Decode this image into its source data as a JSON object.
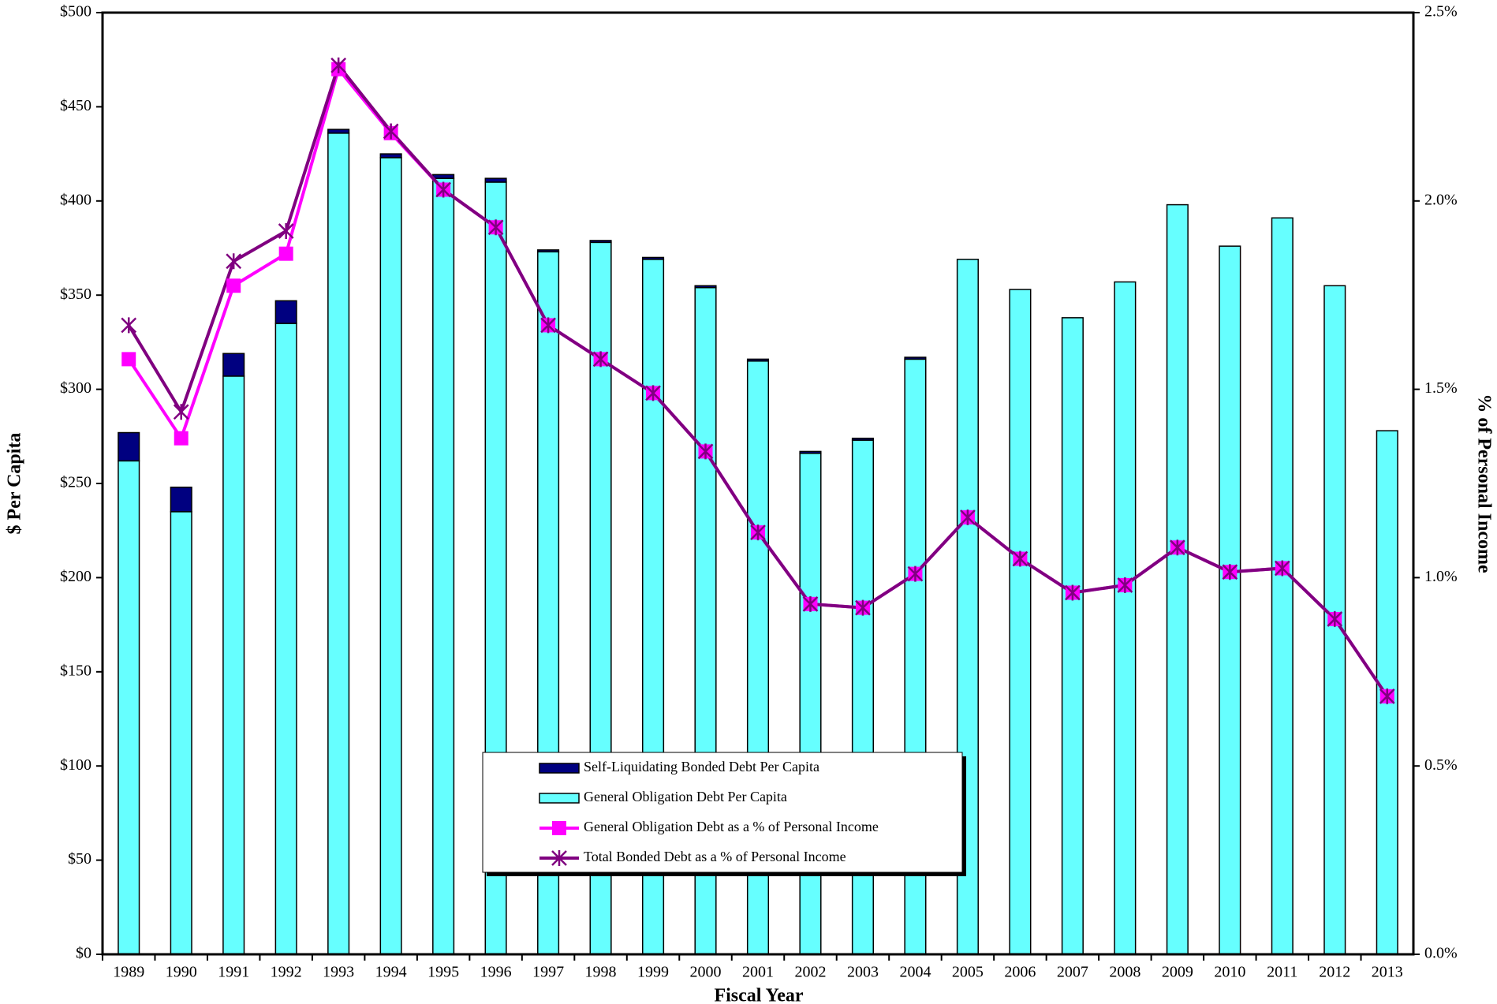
{
  "chart_data": {
    "type": "bar",
    "x_label": "Fiscal Year",
    "y_label": "$ Per Capita",
    "y2_label": "% of Personal Income",
    "categories": [
      "1989",
      "1990",
      "1991",
      "1992",
      "1993",
      "1994",
      "1995",
      "1996",
      "1997",
      "1998",
      "1999",
      "2000",
      "2001",
      "2002",
      "2003",
      "2004",
      "2005",
      "2006",
      "2007",
      "2008",
      "2009",
      "2010",
      "2011",
      "2012",
      "2013"
    ],
    "series": [
      {
        "name": "Self-Liquidating Bonded Debt Per Capita",
        "type": "bar",
        "color": "#000080",
        "stack": "debt",
        "values": [
          15,
          13,
          12,
          12,
          2,
          2,
          2,
          2,
          1,
          1,
          1,
          1,
          1,
          1,
          1,
          1,
          0,
          0,
          0,
          0,
          0,
          0,
          0,
          0,
          0
        ]
      },
      {
        "name": "General Obligation Debt Per Capita",
        "type": "bar",
        "color": "#66ffff",
        "stack": "debt",
        "values": [
          262,
          235,
          307,
          335,
          436,
          423,
          412,
          410,
          373,
          378,
          369,
          354,
          315,
          266,
          273,
          316,
          369,
          353,
          338,
          357,
          398,
          376,
          391,
          355,
          278
        ]
      },
      {
        "name": "General Obligation Debt as a % of Personal Income",
        "type": "line",
        "axis": "y2",
        "color": "#ff00ff",
        "marker": "square",
        "values": [
          1.58,
          1.37,
          1.775,
          1.86,
          2.35,
          2.18,
          2.03,
          1.93,
          1.67,
          1.58,
          1.49,
          1.335,
          1.12,
          0.93,
          0.92,
          1.01,
          1.16,
          1.05,
          0.96,
          0.98,
          1.08,
          1.015,
          1.025,
          0.89,
          0.685
        ]
      },
      {
        "name": "Total Bonded Debt as a % of Personal Income",
        "type": "line",
        "axis": "y2",
        "color": "#800080",
        "marker": "star",
        "values": [
          1.67,
          1.44,
          1.84,
          1.92,
          2.36,
          2.185,
          2.03,
          1.93,
          1.67,
          1.58,
          1.49,
          1.335,
          1.12,
          0.93,
          0.92,
          1.01,
          1.16,
          1.05,
          0.96,
          0.98,
          1.08,
          1.015,
          1.025,
          0.89,
          0.685
        ]
      }
    ],
    "ylim": [
      0,
      500
    ],
    "yticks": [
      {
        "value": 0,
        "label": "$0"
      },
      {
        "value": 50,
        "label": "$50"
      },
      {
        "value": 100,
        "label": "$100"
      },
      {
        "value": 150,
        "label": "$150"
      },
      {
        "value": 200,
        "label": "$200"
      },
      {
        "value": 250,
        "label": "$250"
      },
      {
        "value": 300,
        "label": "$300"
      },
      {
        "value": 350,
        "label": "$350"
      },
      {
        "value": 400,
        "label": "$400"
      },
      {
        "value": 450,
        "label": "$450"
      },
      {
        "value": 500,
        "label": "$500"
      }
    ],
    "y2lim": [
      0,
      2.5
    ],
    "y2ticks": [
      {
        "value": 0,
        "label": "0.0%"
      },
      {
        "value": 0.5,
        "label": "0.5%"
      },
      {
        "value": 1,
        "label": "1.0%"
      },
      {
        "value": 1.5,
        "label": "1.5%"
      },
      {
        "value": 2,
        "label": "2.0%"
      },
      {
        "value": 2.5,
        "label": "2.5%"
      }
    ],
    "legend": "bottom-center"
  }
}
